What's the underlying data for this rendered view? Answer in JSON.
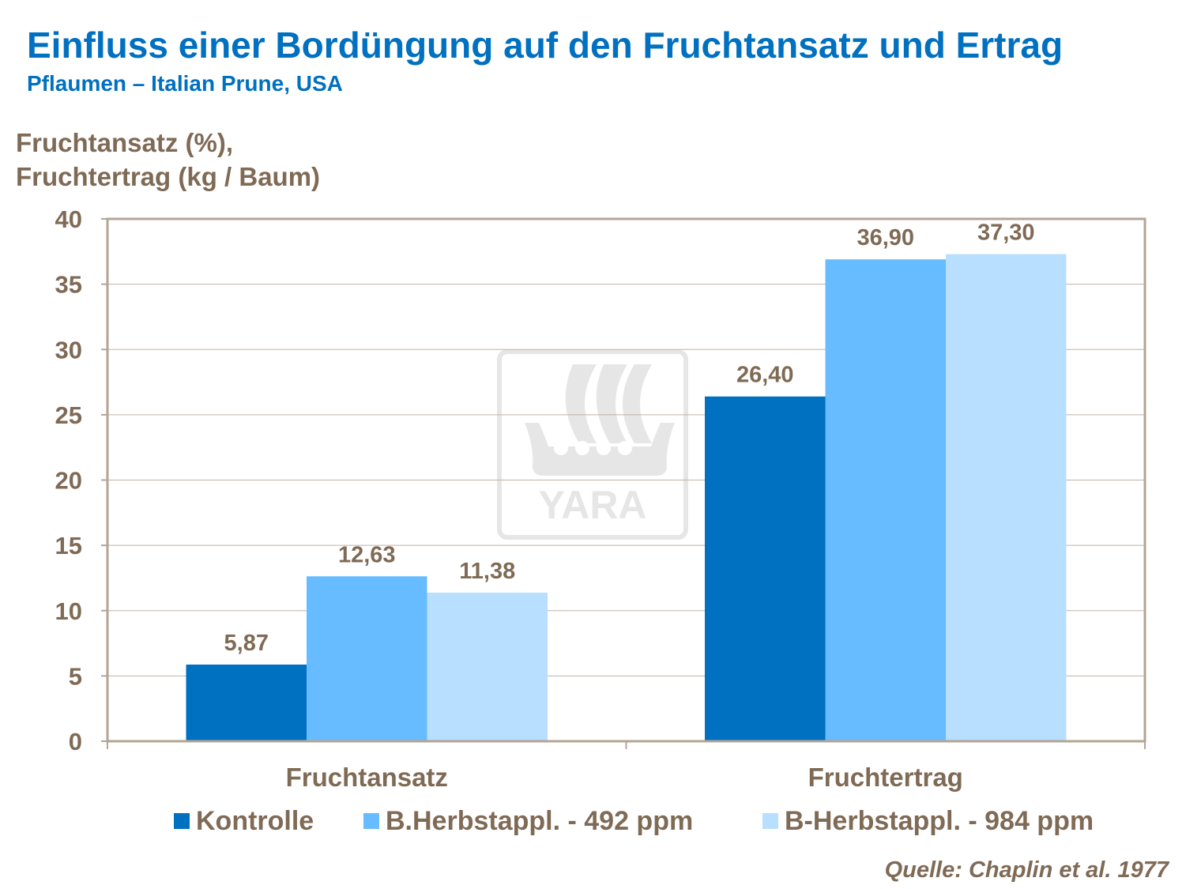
{
  "chart_data": {
    "type": "bar",
    "title": "Einfluss einer Bordüngung auf den Fruchtansatz und Ertrag",
    "subtitle": "Pflaumen – Italian Prune, USA",
    "ylabel": [
      "Fruchtansatz (%),",
      "Fruchtertrag (kg / Baum)"
    ],
    "xlabel": "",
    "ylim": [
      0,
      40
    ],
    "yticks": [
      0,
      5,
      10,
      15,
      20,
      25,
      30,
      35,
      40
    ],
    "grid": true,
    "legend_position": "bottom",
    "categories": [
      "Fruchtansatz",
      "Fruchtertrag"
    ],
    "series": [
      {
        "name": "Kontrolle",
        "values": [
          5.87,
          26.4
        ],
        "labels": [
          "5,87",
          "26,40"
        ],
        "color": "#0070C0"
      },
      {
        "name": "B.Herbstappl. - 492 ppm",
        "values": [
          12.63,
          36.9
        ],
        "labels": [
          "12,63",
          "36,90"
        ],
        "color": "#66BCFF"
      },
      {
        "name": "B-Herbstappl. - 984 ppm",
        "values": [
          11.38,
          37.3
        ],
        "labels": [
          "11,38",
          "37,30"
        ],
        "color": "#B8DFFF"
      }
    ],
    "source": "Quelle: Chaplin et al. 1977"
  },
  "logo": "YARA"
}
